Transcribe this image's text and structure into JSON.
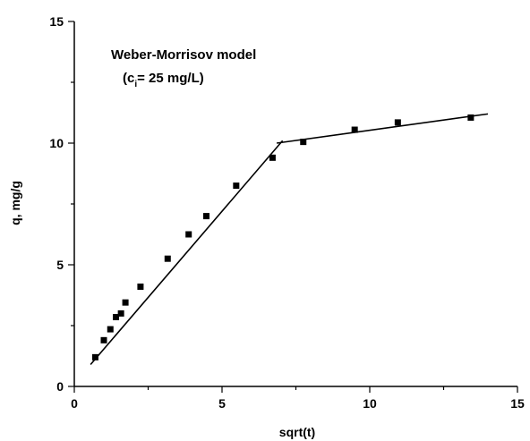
{
  "chart_data": {
    "type": "scatter",
    "title": "",
    "xlabel": "sqrt(t)",
    "ylabel": "q, mg/g",
    "xlim": [
      0,
      15
    ],
    "ylim": [
      0,
      15
    ],
    "xticks": [
      0,
      5,
      10,
      15
    ],
    "yticks": [
      0,
      5,
      10,
      15
    ],
    "grid": false,
    "annotation": {
      "line1": "Weber-Morrisov model",
      "line2_prefix": "(c",
      "line2_sub": "i",
      "line2_suffix": "= 25 mg/L)"
    },
    "series": [
      {
        "marker": "square",
        "x": [
          0.71,
          1.0,
          1.22,
          1.41,
          1.58,
          1.73,
          2.24,
          3.16,
          3.87,
          4.47,
          5.48,
          6.71,
          7.75,
          9.49,
          10.95,
          13.42
        ],
        "y": [
          1.2,
          1.9,
          2.35,
          2.85,
          3.0,
          3.45,
          4.1,
          5.25,
          6.25,
          7.0,
          8.25,
          9.4,
          10.05,
          10.55,
          10.85,
          11.05
        ]
      }
    ],
    "fit_lines": [
      {
        "x": [
          0.55,
          7.05
        ],
        "y": [
          0.9,
          10.1
        ]
      },
      {
        "x": [
          6.85,
          14.0
        ],
        "y": [
          10.0,
          11.2
        ]
      }
    ]
  }
}
